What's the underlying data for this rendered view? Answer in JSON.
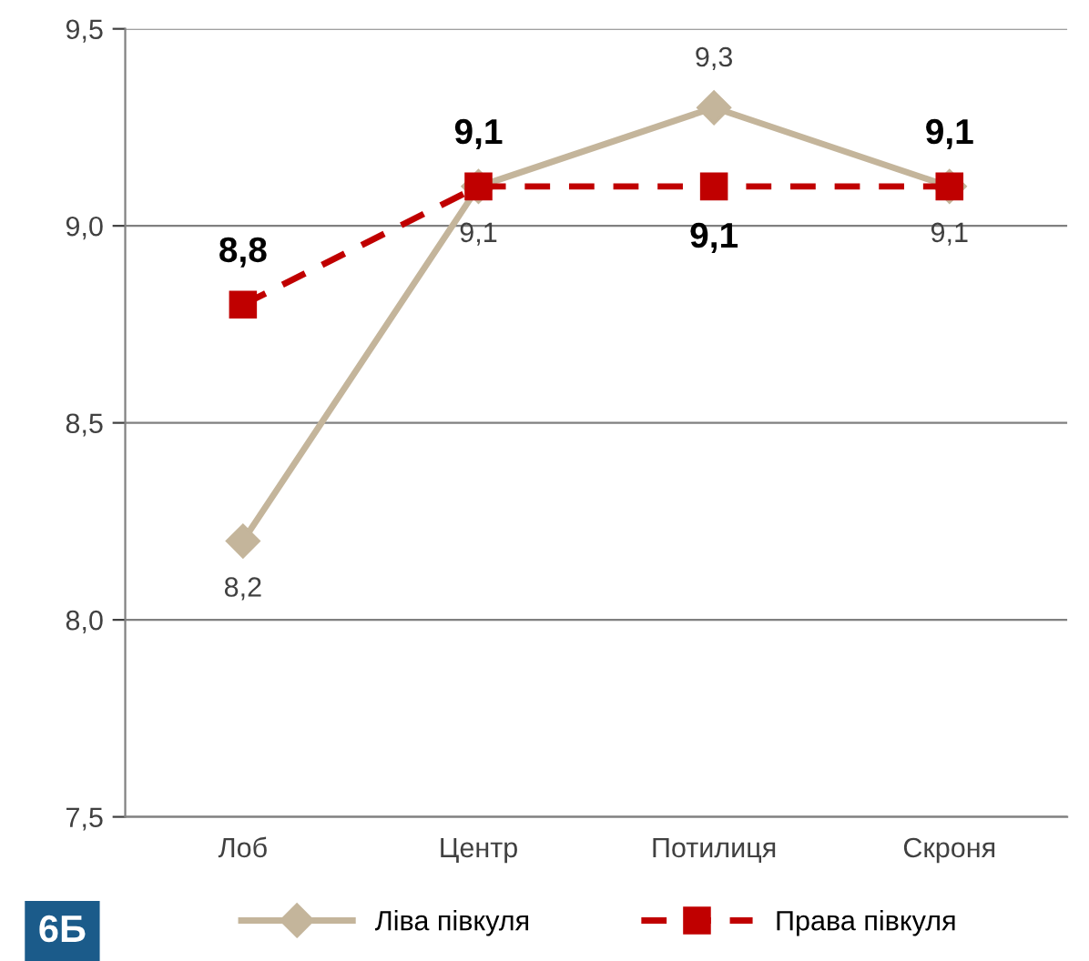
{
  "chart_data": {
    "type": "line",
    "categories": [
      "Лоб",
      "Центр",
      "Потилиця",
      "Скроня"
    ],
    "series": [
      {
        "name": "Ліва півкуля",
        "color": "#c4b59b",
        "values": [
          8.2,
          9.1,
          9.3,
          9.1
        ],
        "value_labels": [
          "8,2",
          "9,1",
          "9,3",
          "9,1"
        ],
        "marker": "diamond",
        "line_style": "solid"
      },
      {
        "name": "Права півкуля",
        "color": "#c00000",
        "values": [
          8.8,
          9.1,
          9.1,
          9.1
        ],
        "value_labels": [
          "8,8",
          "9,1",
          "9,1",
          "9,1"
        ],
        "marker": "square",
        "line_style": "dashed"
      }
    ],
    "ylim": [
      7.5,
      9.5
    ],
    "yticks": [
      {
        "value": 7.5,
        "label": "7,5"
      },
      {
        "value": 8.0,
        "label": "8,0"
      },
      {
        "value": 8.5,
        "label": "8,5"
      },
      {
        "value": 9.0,
        "label": "9,0"
      },
      {
        "value": 9.5,
        "label": "9,5"
      }
    ],
    "grid": "y",
    "legend": "bottom",
    "annotations": [
      "6Б"
    ]
  }
}
